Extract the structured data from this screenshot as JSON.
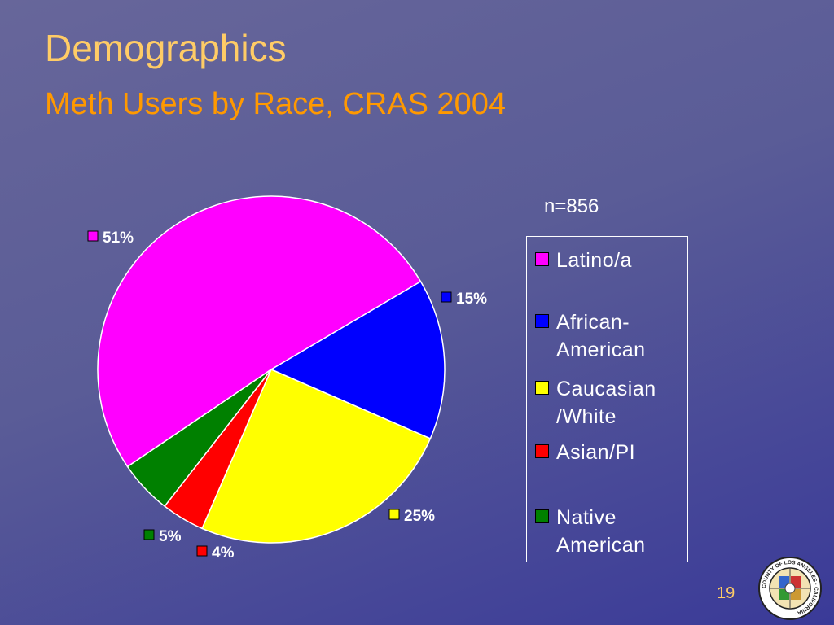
{
  "slide": {
    "title": "Demographics",
    "subtitle": "Meth Users by Race, CRAS 2004",
    "note": "n=856",
    "page_number": "19",
    "seal_text": "COUNTY OF LOS ANGELES · CALIFORNIA ·"
  },
  "colors": {
    "background": "#5a5c97",
    "title": "#ffcc66",
    "subtitle": "#ff9900"
  },
  "chart_data": {
    "type": "pie",
    "title": "",
    "legend_position": "right",
    "start_angle_deg": 0,
    "direction": "clockwise",
    "slices": [
      {
        "label": "Latino/a",
        "value": 51,
        "display": "51%",
        "color": "#ff00ff"
      },
      {
        "label": "African-American",
        "value": 15,
        "display": "15%",
        "color": "#0000ff"
      },
      {
        "label": "Caucasian/White",
        "value": 25,
        "display": "25%",
        "color": "#ffff00"
      },
      {
        "label": "Asian/PI",
        "value": 4,
        "display": "4%",
        "color": "#ff0000"
      },
      {
        "label": "Native American",
        "value": 5,
        "display": "5%",
        "color": "#008000"
      }
    ],
    "legend": [
      {
        "label": "Latino/a",
        "lines": [
          "Latino/a"
        ],
        "color": "#ff00ff"
      },
      {
        "label": "African-American",
        "lines": [
          "African-",
          "American"
        ],
        "color": "#0000ff"
      },
      {
        "label": "Caucasian/White",
        "lines": [
          "Caucasian",
          "/White"
        ],
        "color": "#ffff00"
      },
      {
        "label": "Asian/PI",
        "lines": [
          "Asian/PI"
        ],
        "color": "#ff0000"
      },
      {
        "label": "Native American",
        "lines": [
          "Native",
          "American"
        ],
        "color": "#008000"
      }
    ]
  }
}
